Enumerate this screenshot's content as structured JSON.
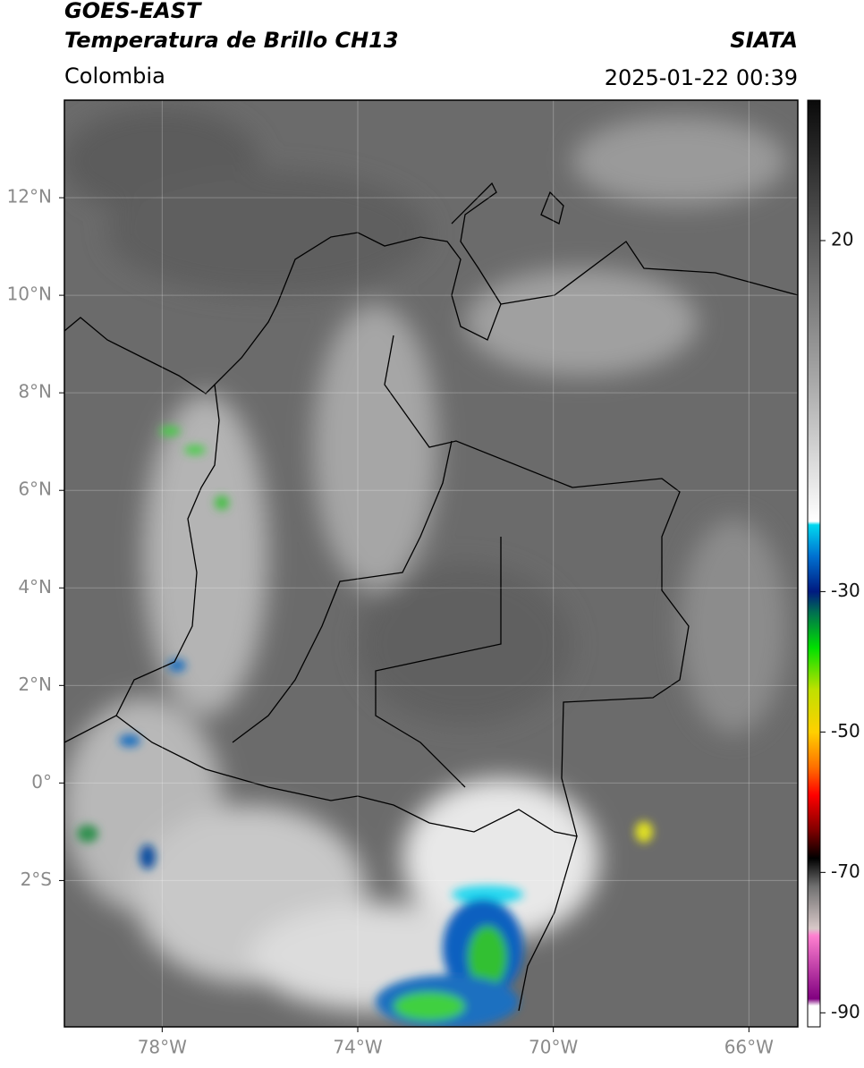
{
  "header": {
    "title": "GOES-EAST",
    "subtitle": "Temperatura de Brillo CH13",
    "region": "Colombia",
    "source": "SIATA",
    "timestamp": "2025-01-22 00:39"
  },
  "map": {
    "xlim": [
      -80,
      -65
    ],
    "ylim": [
      -5,
      14
    ],
    "xticks": [
      {
        "value": -78,
        "label": "78°W"
      },
      {
        "value": -74,
        "label": "74°W"
      },
      {
        "value": -70,
        "label": "70°W"
      },
      {
        "value": -66,
        "label": "66°W"
      }
    ],
    "yticks": [
      {
        "value": 12,
        "label": "12°N"
      },
      {
        "value": 10,
        "label": "10°N"
      },
      {
        "value": 8,
        "label": "8°N"
      },
      {
        "value": 6,
        "label": "6°N"
      },
      {
        "value": 4,
        "label": "4°N"
      },
      {
        "value": 2,
        "label": "2°N"
      },
      {
        "value": 0,
        "label": "0°"
      },
      {
        "value": -2,
        "label": "2°S"
      }
    ],
    "grid": true
  },
  "colorbar": {
    "clim": [
      -92,
      40
    ],
    "ticks": [
      20,
      -30,
      -50,
      -70,
      -90
    ],
    "colormap": [
      {
        "value": 40,
        "color": "#0a0a0a"
      },
      {
        "value": 20,
        "color": "#5a5a5a"
      },
      {
        "value": 0,
        "color": "#a8a8a8"
      },
      {
        "value": -20,
        "color": "#ffffff"
      },
      {
        "value": -20.5,
        "color": "#00d8f0"
      },
      {
        "value": -25,
        "color": "#0070d0"
      },
      {
        "value": -30,
        "color": "#001a80"
      },
      {
        "value": -33,
        "color": "#007050"
      },
      {
        "value": -38,
        "color": "#00e000"
      },
      {
        "value": -44,
        "color": "#c0e000"
      },
      {
        "value": -50,
        "color": "#ffd000"
      },
      {
        "value": -55,
        "color": "#ff7000"
      },
      {
        "value": -59,
        "color": "#ff0000"
      },
      {
        "value": -64,
        "color": "#800000"
      },
      {
        "value": -68,
        "color": "#000000"
      },
      {
        "value": -72,
        "color": "#707070"
      },
      {
        "value": -78,
        "color": "#d8c8c8"
      },
      {
        "value": -79,
        "color": "#ff80d0"
      },
      {
        "value": -88,
        "color": "#800080"
      },
      {
        "value": -89,
        "color": "#ffffff"
      },
      {
        "value": -92,
        "color": "#ffffff"
      }
    ]
  }
}
